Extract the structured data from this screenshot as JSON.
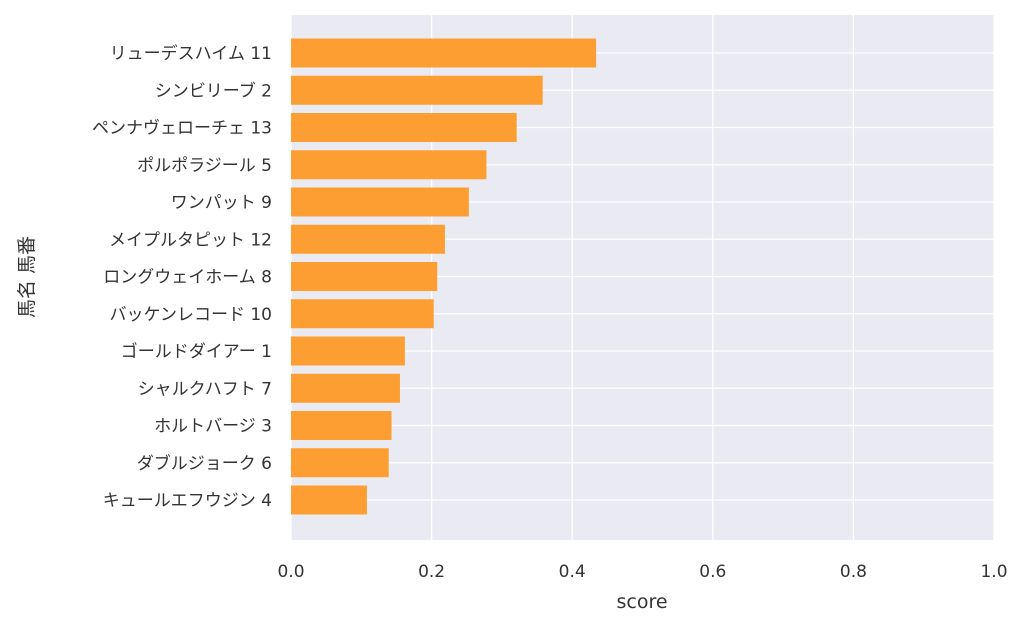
{
  "chart_data": {
    "type": "bar",
    "orientation": "horizontal",
    "xlabel": "score",
    "ylabel": "馬名 馬番",
    "xlim": [
      0,
      1.0
    ],
    "xticks": [
      "0.0",
      "0.2",
      "0.4",
      "0.6",
      "0.8",
      "1.0"
    ],
    "grid": true,
    "bar_color": "#fd9e33",
    "background_color": "#eaeaf2",
    "categories": [
      "リューデスハイム 11",
      "シンビリーブ 2",
      "ペンナヴェローチェ 13",
      "ポルポラジール 5",
      "ワンパット 9",
      "メイプルタピット 12",
      "ロングウェイホーム 8",
      "バッケンレコード 10",
      "ゴールドダイアー 1",
      "シャルクハフト 7",
      "ホルトバージ 3",
      "ダブルジョーク 6",
      "キュールエフウジン 4"
    ],
    "values": [
      0.434,
      0.358,
      0.321,
      0.278,
      0.253,
      0.219,
      0.208,
      0.203,
      0.162,
      0.155,
      0.143,
      0.139,
      0.108
    ]
  }
}
